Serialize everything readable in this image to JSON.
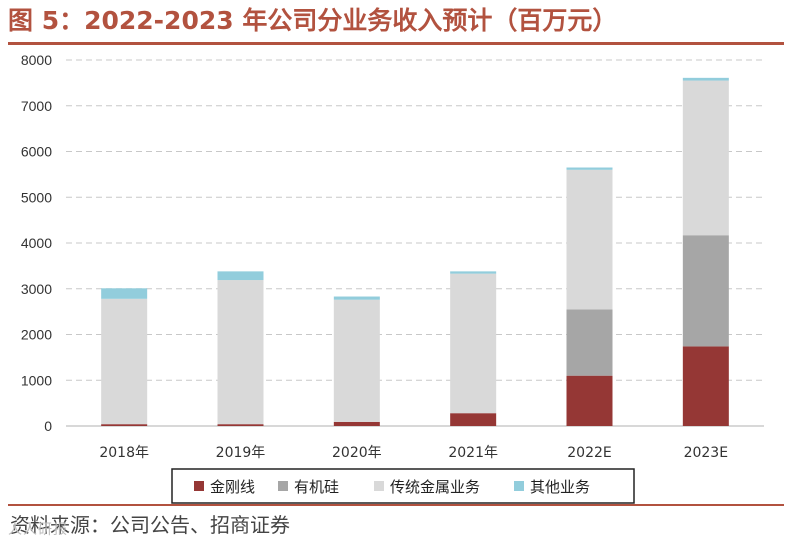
{
  "header": {
    "title": "图 5：2022-2023 年公司分业务收入预计（百万元）"
  },
  "footer": {
    "source": "资料来源：公司公告、招商证券",
    "watermark": "人人​研报"
  },
  "colors": {
    "accent": "#b2523f",
    "金刚线": "#953735",
    "有机硅": "#a6a6a6",
    "传统金属业务": "#d9d9d9",
    "其他业务": "#92cddc"
  },
  "chart_data": {
    "type": "bar",
    "stacked": true,
    "title": "2022-2023 年公司分业务收入预计（百万元）",
    "xlabel": "",
    "ylabel": "",
    "ylim": [
      0,
      8000
    ],
    "yticks": [
      0,
      1000,
      2000,
      3000,
      4000,
      5000,
      6000,
      7000,
      8000
    ],
    "grid": true,
    "legend_position": "bottom",
    "categories": [
      "2018年",
      "2019年",
      "2020年",
      "2021年",
      "2022E",
      "2023E"
    ],
    "series": [
      {
        "name": "金刚线",
        "color": "#953735",
        "values": [
          40,
          40,
          90,
          280,
          1100,
          1740
        ]
      },
      {
        "name": "有机硅",
        "color": "#a6a6a6",
        "values": [
          0,
          0,
          0,
          0,
          1450,
          2430
        ]
      },
      {
        "name": "传统金属业务",
        "color": "#d9d9d9",
        "values": [
          2740,
          3150,
          2670,
          3050,
          3050,
          3380
        ]
      },
      {
        "name": "其他业务",
        "color": "#92cddc",
        "values": [
          230,
          190,
          70,
          50,
          50,
          60
        ]
      }
    ]
  }
}
